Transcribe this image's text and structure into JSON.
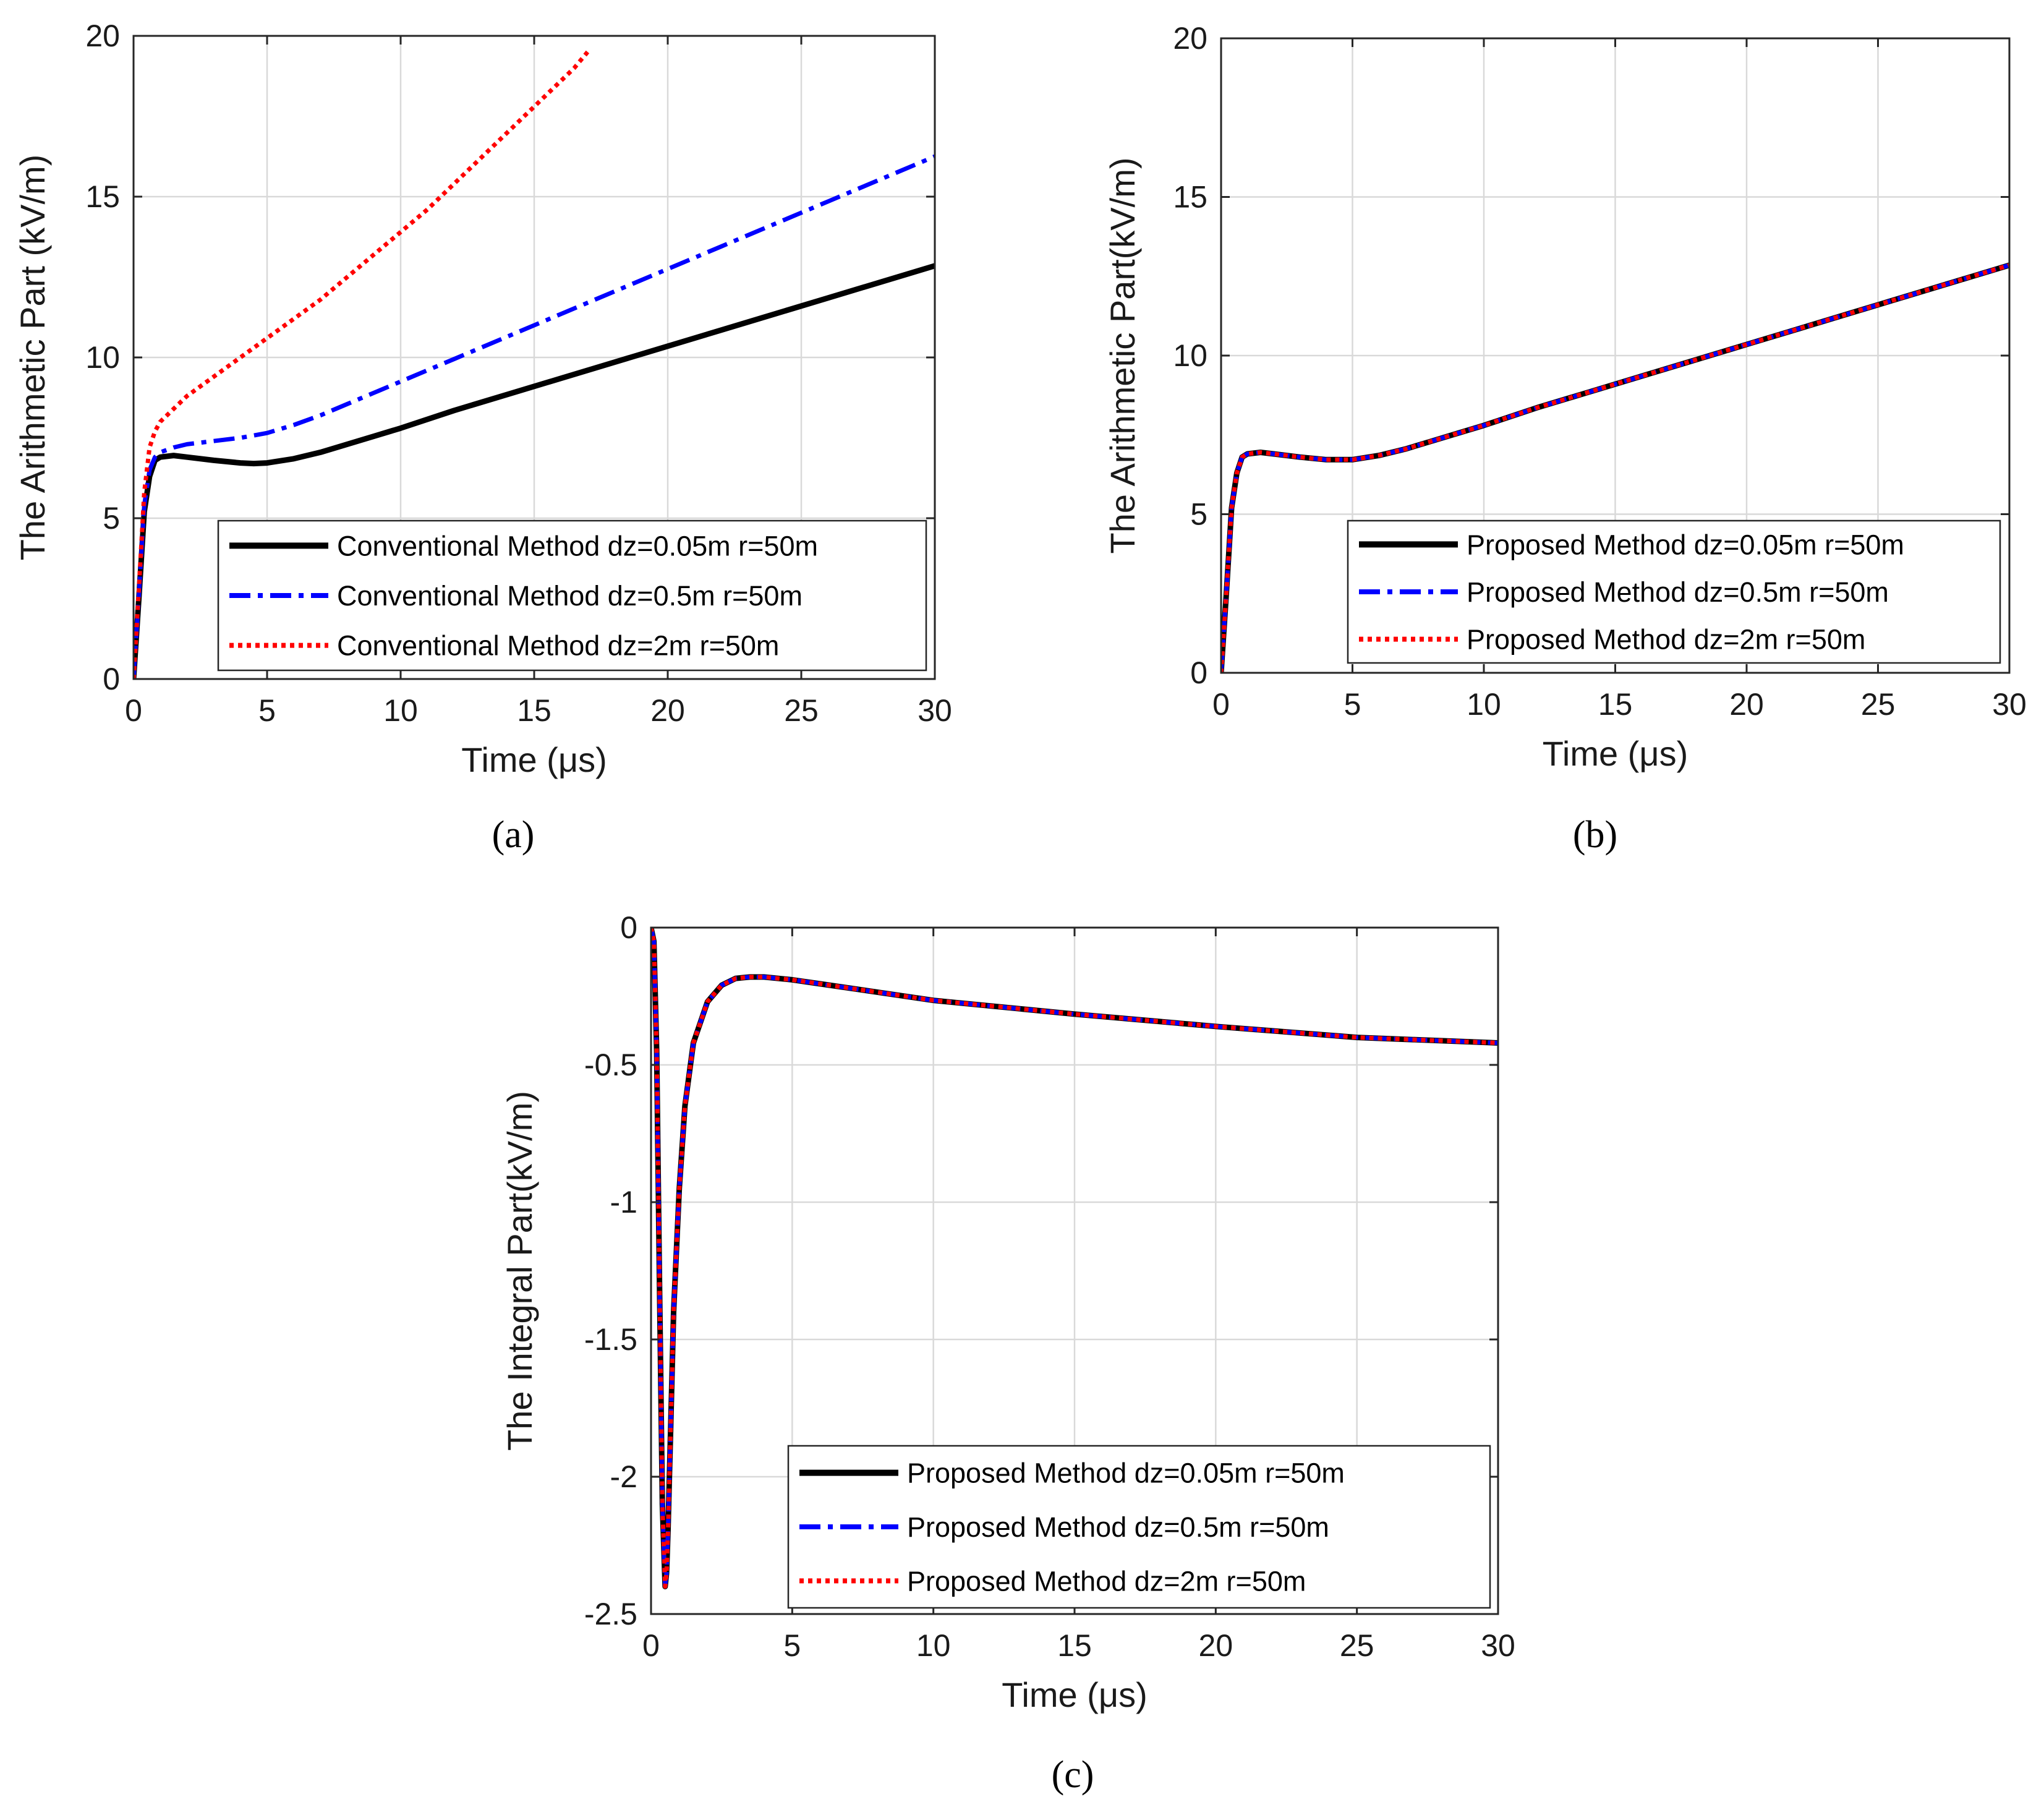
{
  "figure": {
    "panels": 3
  },
  "chart_data": [
    {
      "id": "a",
      "type": "line",
      "caption": "(a)",
      "xlabel": "Time (μs)",
      "ylabel": "The Arithmetic Part (kV/m)",
      "xlim": [
        0,
        30
      ],
      "ylim": [
        0,
        20
      ],
      "xticks": [
        0,
        5,
        10,
        15,
        20,
        25,
        30
      ],
      "yticks": [
        0,
        5,
        10,
        15,
        20
      ],
      "grid": true,
      "legend_position": "bottom-right",
      "series": [
        {
          "name": "Conventional Method dz=0.05m r=50m",
          "color": "#000000",
          "style": "solid",
          "x": [
            0,
            0.2,
            0.4,
            0.6,
            0.8,
            1.0,
            1.5,
            2,
            3,
            4,
            4.5,
            5,
            6,
            7,
            8,
            9,
            10,
            12,
            14,
            16,
            18,
            20,
            22,
            24,
            26,
            28,
            30
          ],
          "y": [
            0,
            2.5,
            5.2,
            6.3,
            6.8,
            6.9,
            6.95,
            6.9,
            6.8,
            6.72,
            6.7,
            6.72,
            6.85,
            7.05,
            7.3,
            7.55,
            7.8,
            8.35,
            8.85,
            9.35,
            9.85,
            10.35,
            10.85,
            11.35,
            11.85,
            12.35,
            12.85
          ]
        },
        {
          "name": "Conventional Method dz=0.5m r=50m",
          "color": "#0000ff",
          "style": "dashdot",
          "x": [
            0,
            0.2,
            0.4,
            0.6,
            0.8,
            1.0,
            1.5,
            2,
            3,
            4,
            5,
            6,
            7,
            8,
            9,
            10,
            12,
            14,
            16,
            18,
            20,
            22,
            24,
            26,
            28,
            30
          ],
          "y": [
            0,
            2.6,
            5.4,
            6.5,
            6.9,
            7.05,
            7.2,
            7.3,
            7.4,
            7.5,
            7.65,
            7.9,
            8.2,
            8.55,
            8.9,
            9.25,
            9.95,
            10.65,
            11.35,
            12.05,
            12.75,
            13.45,
            14.15,
            14.85,
            15.55,
            16.25
          ]
        },
        {
          "name": "Conventional Method dz=2m r=50m",
          "color": "#ff0000",
          "style": "dotted",
          "x": [
            0,
            0.2,
            0.4,
            0.6,
            0.8,
            1.0,
            1.5,
            2,
            3,
            4,
            5,
            6,
            7,
            8,
            9,
            10,
            11,
            12,
            13,
            14,
            15,
            16,
            16.5,
            17
          ],
          "y": [
            0,
            2.8,
            5.8,
            7.2,
            7.7,
            8.0,
            8.4,
            8.8,
            9.4,
            10.0,
            10.6,
            11.2,
            11.8,
            12.5,
            13.2,
            13.9,
            14.6,
            15.4,
            16.2,
            17.0,
            17.8,
            18.6,
            19.0,
            19.5
          ]
        }
      ]
    },
    {
      "id": "b",
      "type": "line",
      "caption": "(b)",
      "xlabel": "Time (μs)",
      "ylabel": "The Arithmetic Part(kV/m)",
      "xlim": [
        0,
        30
      ],
      "ylim": [
        0,
        20
      ],
      "xticks": [
        0,
        5,
        10,
        15,
        20,
        25,
        30
      ],
      "yticks": [
        0,
        5,
        10,
        15,
        20
      ],
      "grid": true,
      "legend_position": "bottom-right",
      "series": [
        {
          "name": "Proposed Method dz=0.05m r=50m",
          "color": "#000000",
          "style": "solid",
          "x": [
            0,
            0.2,
            0.4,
            0.6,
            0.8,
            1.0,
            1.5,
            2,
            3,
            4,
            5,
            6,
            7,
            8,
            9,
            10,
            12,
            14,
            16,
            18,
            20,
            22,
            24,
            26,
            28,
            30
          ],
          "y": [
            0,
            2.5,
            5.2,
            6.3,
            6.8,
            6.9,
            6.95,
            6.9,
            6.8,
            6.72,
            6.72,
            6.85,
            7.05,
            7.3,
            7.55,
            7.8,
            8.35,
            8.85,
            9.35,
            9.85,
            10.35,
            10.85,
            11.35,
            11.85,
            12.35,
            12.85
          ]
        },
        {
          "name": "Proposed Method dz=0.5m r=50m",
          "color": "#0000ff",
          "style": "dashdot",
          "x": [
            0,
            0.2,
            0.4,
            0.6,
            0.8,
            1.0,
            1.5,
            2,
            3,
            4,
            5,
            6,
            7,
            8,
            9,
            10,
            12,
            14,
            16,
            18,
            20,
            22,
            24,
            26,
            28,
            30
          ],
          "y": [
            0,
            2.5,
            5.2,
            6.3,
            6.8,
            6.9,
            6.95,
            6.9,
            6.8,
            6.72,
            6.72,
            6.85,
            7.05,
            7.3,
            7.55,
            7.8,
            8.35,
            8.85,
            9.35,
            9.85,
            10.35,
            10.85,
            11.35,
            11.85,
            12.35,
            12.85
          ]
        },
        {
          "name": "Proposed Method dz=2m r=50m",
          "color": "#ff0000",
          "style": "dotted",
          "x": [
            0,
            0.2,
            0.4,
            0.6,
            0.8,
            1.0,
            1.5,
            2,
            3,
            4,
            5,
            6,
            7,
            8,
            9,
            10,
            12,
            14,
            16,
            18,
            20,
            22,
            24,
            26,
            28,
            30
          ],
          "y": [
            0,
            2.5,
            5.2,
            6.3,
            6.8,
            6.9,
            6.95,
            6.9,
            6.8,
            6.72,
            6.72,
            6.85,
            7.05,
            7.3,
            7.55,
            7.8,
            8.35,
            8.85,
            9.35,
            9.85,
            10.35,
            10.85,
            11.35,
            11.85,
            12.35,
            12.85
          ]
        }
      ]
    },
    {
      "id": "c",
      "type": "line",
      "caption": "(c)",
      "xlabel": "Time (μs)",
      "ylabel": "The Integral Part(kV/m)",
      "xlim": [
        0,
        30
      ],
      "ylim": [
        -2.5,
        0
      ],
      "xticks": [
        0,
        5,
        10,
        15,
        20,
        25,
        30
      ],
      "yticks": [
        0,
        -0.5,
        -1,
        -1.5,
        -2,
        -2.5
      ],
      "grid": true,
      "legend_position": "bottom-right",
      "series": [
        {
          "name": "Proposed Method dz=0.05m r=50m",
          "color": "#000000",
          "style": "solid",
          "x": [
            0,
            0.1,
            0.2,
            0.3,
            0.4,
            0.5,
            0.55,
            0.6,
            0.7,
            0.8,
            1.0,
            1.2,
            1.5,
            2,
            2.5,
            3,
            3.5,
            4,
            5,
            6,
            8,
            10,
            15,
            20,
            25,
            30
          ],
          "y": [
            0,
            -0.05,
            -0.45,
            -1.3,
            -2.1,
            -2.4,
            -2.35,
            -2.2,
            -1.8,
            -1.4,
            -0.95,
            -0.65,
            -0.42,
            -0.27,
            -0.21,
            -0.185,
            -0.18,
            -0.18,
            -0.19,
            -0.205,
            -0.235,
            -0.265,
            -0.315,
            -0.36,
            -0.4,
            -0.42
          ]
        },
        {
          "name": "Proposed Method dz=0.5m r=50m",
          "color": "#0000ff",
          "style": "dashdot",
          "x": [
            0,
            0.1,
            0.2,
            0.3,
            0.4,
            0.5,
            0.55,
            0.6,
            0.7,
            0.8,
            1.0,
            1.2,
            1.5,
            2,
            2.5,
            3,
            3.5,
            4,
            5,
            6,
            8,
            10,
            15,
            20,
            25,
            30
          ],
          "y": [
            0,
            -0.05,
            -0.45,
            -1.3,
            -2.1,
            -2.4,
            -2.35,
            -2.2,
            -1.8,
            -1.4,
            -0.95,
            -0.65,
            -0.42,
            -0.27,
            -0.21,
            -0.185,
            -0.18,
            -0.18,
            -0.19,
            -0.205,
            -0.235,
            -0.265,
            -0.315,
            -0.36,
            -0.4,
            -0.42
          ]
        },
        {
          "name": "Proposed Method dz=2m r=50m",
          "color": "#ff0000",
          "style": "dotted",
          "x": [
            0,
            0.1,
            0.2,
            0.3,
            0.4,
            0.5,
            0.55,
            0.6,
            0.7,
            0.8,
            1.0,
            1.2,
            1.5,
            2,
            2.5,
            3,
            3.5,
            4,
            5,
            6,
            8,
            10,
            15,
            20,
            25,
            30
          ],
          "y": [
            0,
            -0.05,
            -0.45,
            -1.3,
            -2.1,
            -2.4,
            -2.35,
            -2.2,
            -1.8,
            -1.4,
            -0.95,
            -0.65,
            -0.42,
            -0.27,
            -0.21,
            -0.185,
            -0.18,
            -0.18,
            -0.19,
            -0.205,
            -0.235,
            -0.265,
            -0.315,
            -0.36,
            -0.4,
            -0.42
          ]
        }
      ]
    }
  ]
}
